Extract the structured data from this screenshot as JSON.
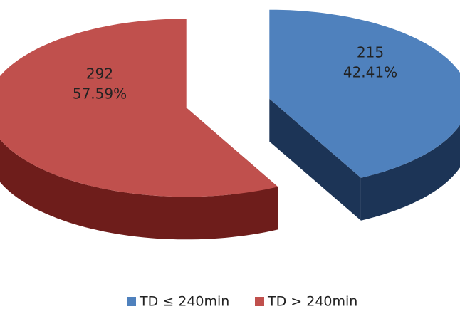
{
  "chart_data": {
    "type": "pie3d",
    "categories": [
      "TD ≤ 240min",
      "TD > 240min"
    ],
    "values": [
      215,
      292
    ],
    "percent_labels": [
      "42.41%",
      "57.59%"
    ],
    "colors": [
      "#4f81bd",
      "#c0504d"
    ],
    "side_colors": [
      "#1c3456",
      "#6e1d1b"
    ],
    "legend": "bottom"
  }
}
